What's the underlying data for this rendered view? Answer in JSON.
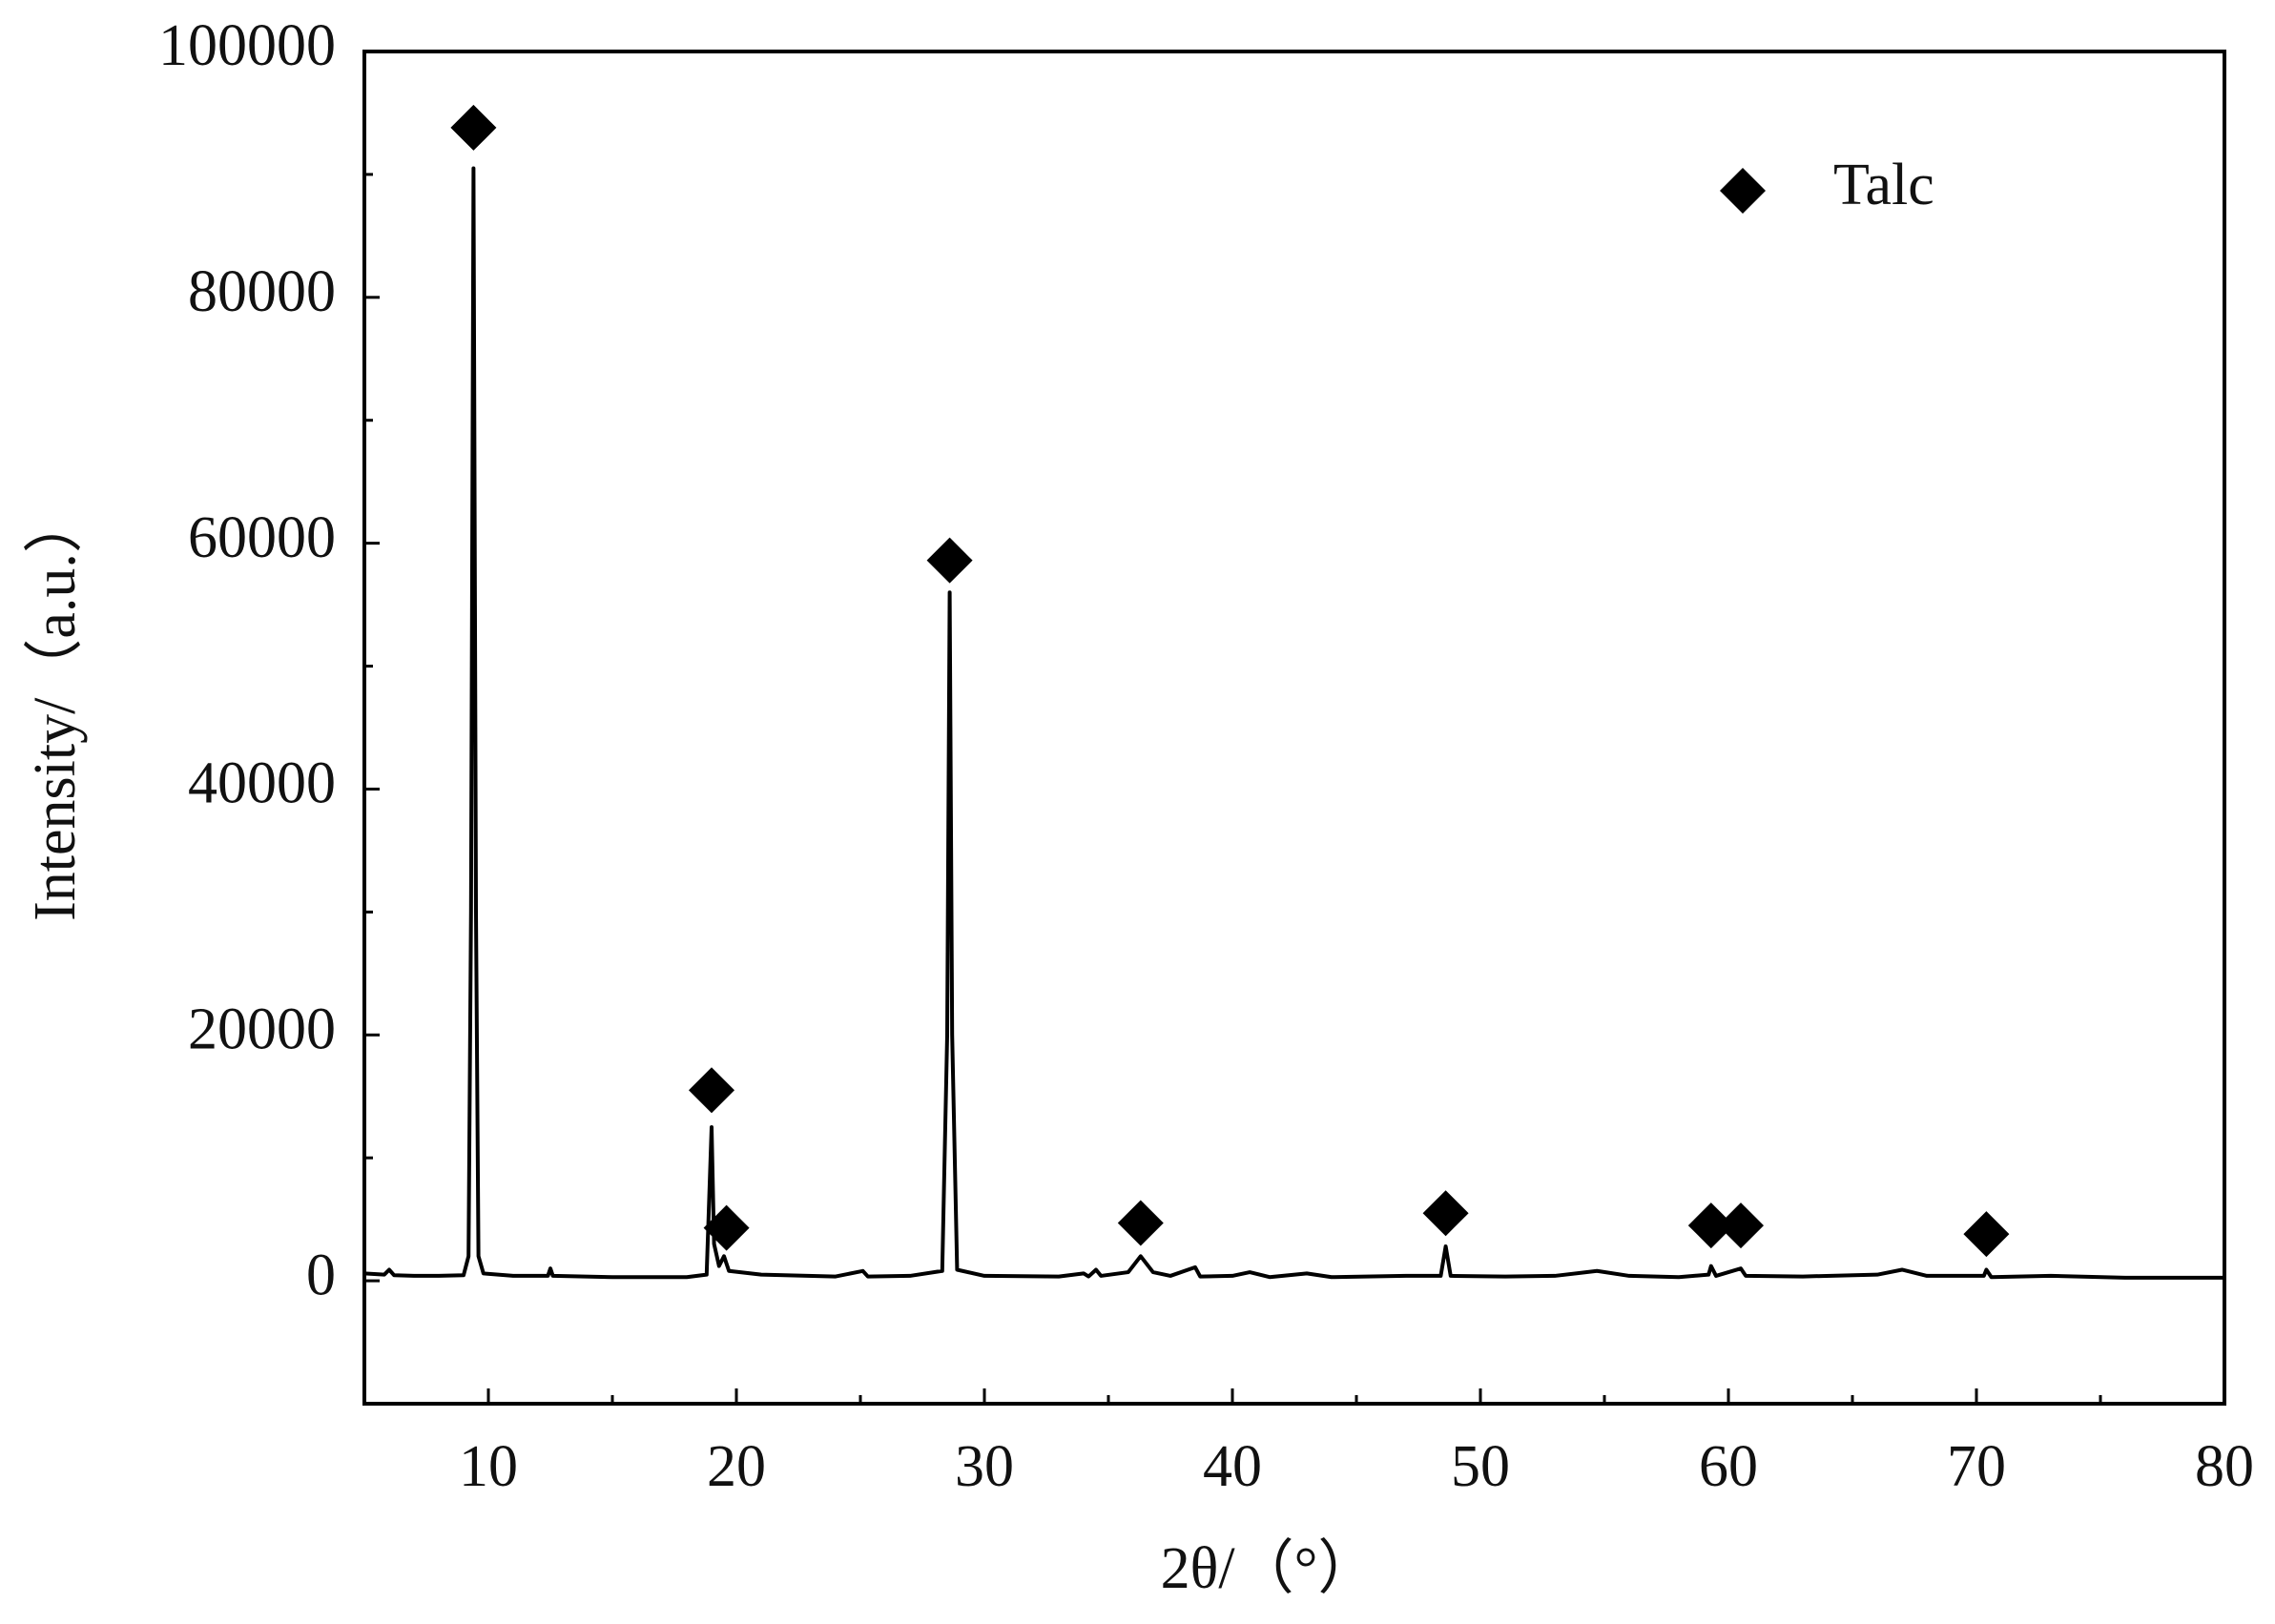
{
  "chart_data": {
    "type": "line",
    "xlabel": "2θ/（°）",
    "ylabel": "Intensity/（a.u.）",
    "xlim": [
      5,
      80
    ],
    "ylim": [
      -10000,
      100000
    ],
    "xticks": [
      10,
      20,
      30,
      40,
      50,
      60,
      70,
      80
    ],
    "yticks": [
      0,
      20000,
      40000,
      60000,
      80000,
      100000
    ],
    "xminorticks": [
      15,
      25,
      35,
      45,
      55,
      65,
      75
    ],
    "yminorticks": [
      -10000,
      10000,
      30000,
      50000,
      70000,
      90000
    ],
    "legend": "upper right",
    "series": [
      {
        "color": "#000000",
        "x": [
          5.0,
          5.8,
          6.0,
          6.2,
          7,
          8,
          9.0,
          9.2,
          9.3,
          9.4,
          9.5,
          9.6,
          9.8,
          11,
          12.4,
          12.5,
          12.6,
          15,
          18,
          18.8,
          19.0,
          19.1,
          19.3,
          19.5,
          19.7,
          21,
          24,
          25.1,
          25.3,
          27,
          28.3,
          28.5,
          28.6,
          28.7,
          28.9,
          30,
          33,
          34.0,
          34.2,
          34.5,
          34.7,
          35.8,
          36.3,
          36.8,
          37.5,
          38.5,
          38.7,
          40,
          40.7,
          41.5,
          43,
          44,
          47,
          48.4,
          48.6,
          48.8,
          51,
          53,
          54.7,
          56,
          58,
          59.2,
          59.3,
          59.5,
          60.5,
          60.7,
          63,
          66,
          67,
          68,
          70.3,
          70.4,
          70.6,
          73,
          76,
          80
        ],
        "values": [
          600,
          500,
          900,
          450,
          400,
          400,
          450,
          2000,
          30000,
          90500,
          30000,
          2000,
          600,
          400,
          400,
          1000,
          400,
          300,
          300,
          500,
          12500,
          3000,
          1200,
          2000,
          800,
          500,
          350,
          800,
          350,
          400,
          800,
          20000,
          56000,
          20000,
          900,
          400,
          350,
          600,
          350,
          900,
          400,
          700,
          2000,
          700,
          400,
          1100,
          350,
          400,
          700,
          300,
          600,
          300,
          400,
          400,
          2800,
          400,
          350,
          400,
          800,
          400,
          300,
          500,
          1200,
          400,
          1000,
          400,
          350,
          500,
          900,
          400,
          400,
          900,
          300,
          400,
          250,
          250
        ]
      },
      {
        "name": "Talc",
        "marker": "diamond",
        "color": "#000000",
        "x": [
          9.4,
          19.0,
          19.6,
          28.6,
          36.3,
          48.6,
          59.3,
          60.5,
          70.4
        ],
        "values": [
          93800,
          15500,
          4300,
          58600,
          4700,
          5500,
          4500,
          4500,
          3800
        ]
      }
    ]
  }
}
